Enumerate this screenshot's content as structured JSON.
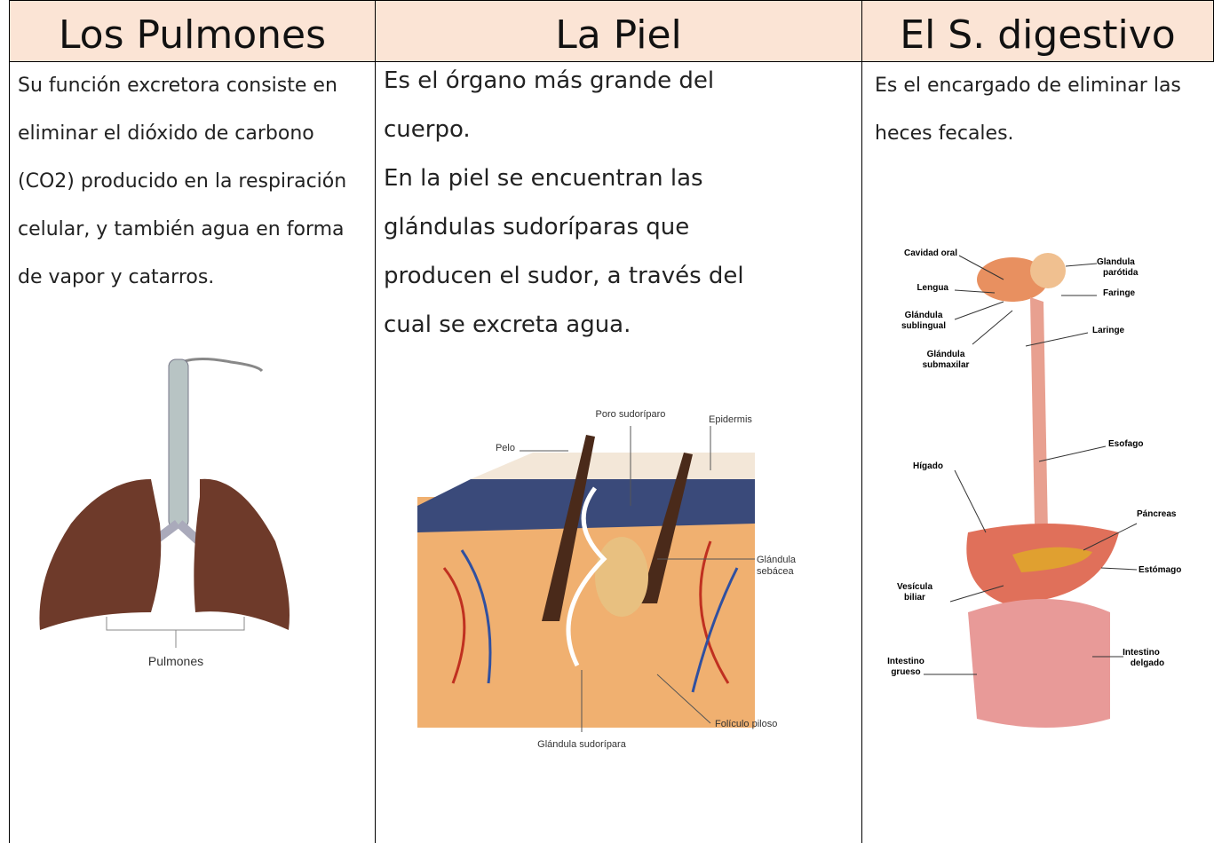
{
  "columns": [
    {
      "title": "Los Pulmones",
      "paragraphs": [
        "Su función excretora consiste en eliminar el dióxido de carbono (CO2) producido en la respiración celular, y también agua en forma de vapor y catarros."
      ],
      "figure_labels": [
        [
          "Pulmones"
        ]
      ]
    },
    {
      "title": "La Piel",
      "paragraphs": [
        "Es el órgano más grande del cuerpo.",
        "En la piel se encuentran las glándulas sudoríparas que producen el sudor, a través del cual se excreta agua."
      ],
      "figure_labels": [
        [
          "Poro sudoríparo"
        ],
        [
          "Epidermis"
        ],
        [
          "Pelo"
        ],
        [
          "Glándula",
          "sebácea"
        ],
        [
          "Folículo piloso"
        ],
        [
          "Glándula sudorípara"
        ]
      ]
    },
    {
      "title": "El S. digestivo",
      "paragraphs": [
        "Es el encargado de eliminar las heces fecales."
      ],
      "figure_labels": [
        [
          "Cavidad oral"
        ],
        [
          "Lengua"
        ],
        [
          "Glándula",
          "sublingual"
        ],
        [
          "Glándula",
          "submaxilar"
        ],
        [
          "Glandula",
          "parótida"
        ],
        [
          "Faringe"
        ],
        [
          "Laringe"
        ],
        [
          "Esofago"
        ],
        [
          "Hígado"
        ],
        [
          "Páncreas"
        ],
        [
          "Estómago"
        ],
        [
          "Vesícula",
          "biliar"
        ],
        [
          "Intestino",
          "delgado"
        ],
        [
          "Intestino",
          "grueso"
        ]
      ]
    }
  ]
}
